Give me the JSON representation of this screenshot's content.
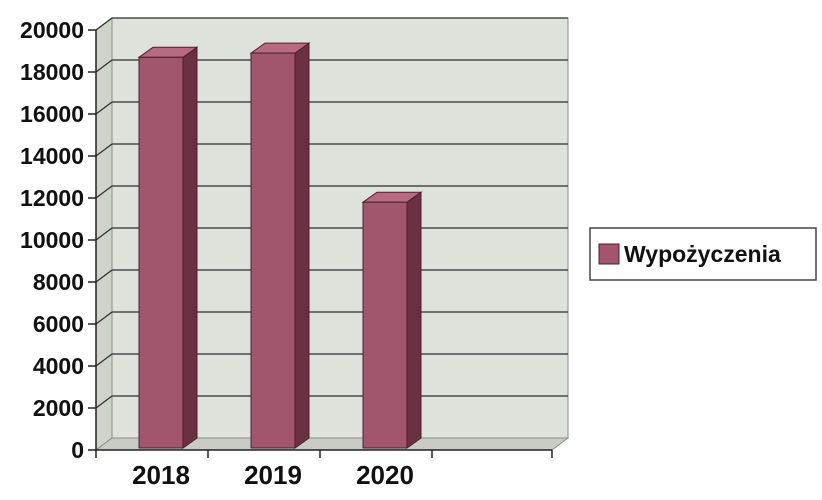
{
  "chart_data": {
    "type": "bar",
    "categories": [
      "2018",
      "2019",
      "2020"
    ],
    "series": [
      {
        "name": "Wypożyczenia",
        "values": [
          18700,
          18900,
          11800
        ]
      }
    ],
    "title": "",
    "xlabel": "",
    "ylabel": "",
    "ylim": [
      0,
      20000
    ],
    "yticks": [
      "0",
      "2000",
      "4000",
      "6000",
      "8000",
      "10000",
      "12000",
      "14000",
      "16000",
      "18000",
      "20000"
    ],
    "grid": true,
    "legend_position": "right",
    "style": "3d-column",
    "colors": {
      "bar_front": "#a2566b",
      "bar_side": "#6b3140",
      "bar_top": "#b86a80",
      "plot_wall": "#dde2da",
      "plot_floor": "#c9ccc4",
      "gridline": "#2e2e2e"
    }
  }
}
